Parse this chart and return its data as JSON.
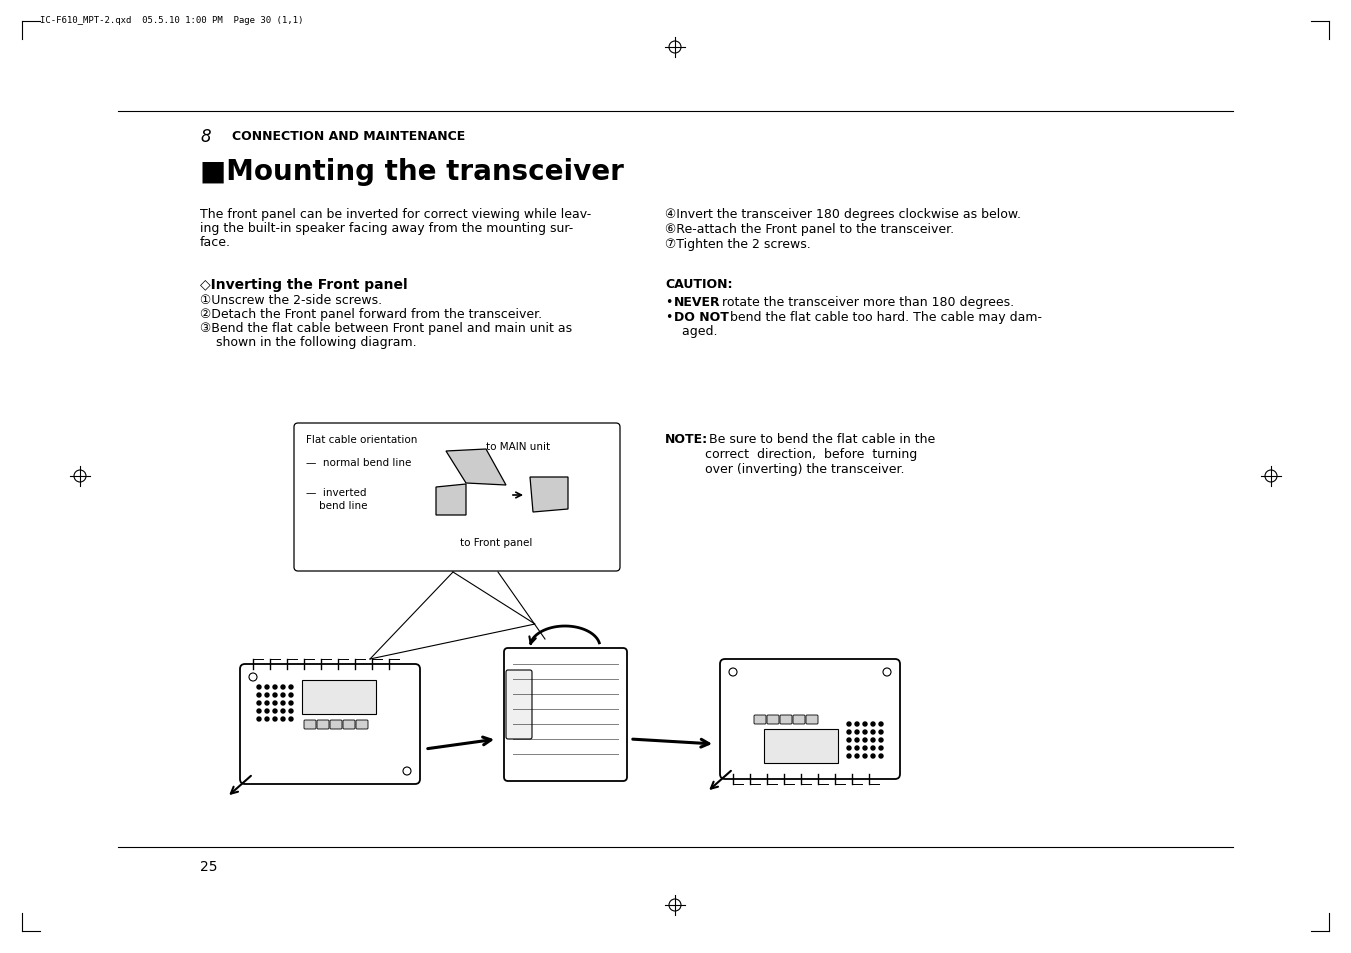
{
  "bg_color": "#ffffff",
  "text_color": "#000000",
  "header_text": "IC-F610_MPT-2.qxd  05.5.10 1:00 PM  Page 30 (1,1)",
  "section_number": "8",
  "section_title": "CONNECTION AND MAINTENANCE",
  "main_title": "■Mounting the transceiver",
  "intro_line1": "The front panel can be inverted for correct viewing while leav-",
  "intro_line2": "ing the built-in speaker facing away from the mounting sur-",
  "intro_line3": "face.",
  "subheading": "◇Inverting the Front panel",
  "step1": "①Unscrew the 2-side screws.",
  "step2": "②Detach the Front panel forward from the transceiver.",
  "step3a": "③Bend the flat cable between Front panel and main unit as",
  "step3b": "  shown in the following diagram.",
  "step4": "④Invert the transceiver 180 degrees clockwise as below.",
  "step5": "⑥Re-attach the Front panel to the transceiver.",
  "step6": "⑦Tighten the 2 screws.",
  "caution_title": "CAUTION:",
  "caution1_bold": "NEVER",
  "caution1_rest": " rotate the transceiver more than 180 degrees.",
  "caution2_bold": "DO NOT",
  "caution2_rest": " bend the flat cable too hard. The cable may dam-",
  "caution2_rest2": "  aged.",
  "note_bold": "NOTE:",
  "note_line1": " Be sure to bend the flat cable in the",
  "note_line2": "correct  direction,  before  turning",
  "note_line3": "over (inverting) the transceiver.",
  "diagram_title": "Flat cable orientation",
  "diagram_label1": "—  normal bend line",
  "diagram_label2": "—  inverted",
  "diagram_label3": "    bend line",
  "diagram_to_main": "to MAIN unit",
  "diagram_to_front": "to Front panel",
  "page_number": "25",
  "font_size_header": 6.5,
  "font_size_section": 9,
  "font_size_main_title": 20,
  "font_size_body": 9,
  "font_size_subheading": 10,
  "font_size_note": 9
}
